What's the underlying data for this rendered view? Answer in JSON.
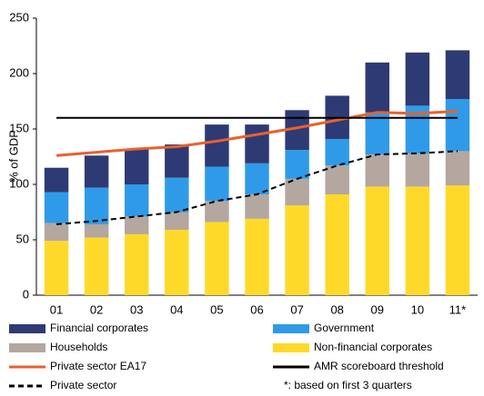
{
  "chart_data": {
    "type": "bar",
    "y_label": "% of GDP",
    "categories": [
      "01",
      "02",
      "03",
      "04",
      "05",
      "06",
      "07",
      "08",
      "09",
      "10",
      "11*"
    ],
    "ylim": [
      0,
      250
    ],
    "yticks": [
      0,
      50,
      100,
      150,
      200,
      250
    ],
    "series": [
      {
        "name": "Financial corporates",
        "kind": "bar",
        "color": "#2e3a73",
        "values": [
          22,
          29,
          32,
          30,
          38,
          35,
          36,
          39,
          45,
          48,
          44
        ]
      },
      {
        "name": "Government",
        "kind": "bar",
        "color": "#2f9be8",
        "values": [
          28,
          33,
          29,
          31,
          31,
          28,
          26,
          24,
          38,
          43,
          47
        ]
      },
      {
        "name": "Households",
        "kind": "bar",
        "color": "#b3a79f",
        "values": [
          16,
          12,
          16,
          16,
          19,
          22,
          24,
          26,
          29,
          30,
          31
        ]
      },
      {
        "name": "Non-financial corporates",
        "kind": "bar",
        "color": "#ffd92a",
        "values": [
          49,
          52,
          55,
          59,
          66,
          69,
          81,
          91,
          98,
          98,
          99
        ]
      },
      {
        "name": "Private sector EA17",
        "kind": "line",
        "color": "#e8612c",
        "style": "solid",
        "values": [
          126,
          129,
          132,
          134,
          139,
          145,
          151,
          158,
          165,
          164,
          166
        ]
      },
      {
        "name": "AMR scoreboard threshold",
        "kind": "line",
        "color": "#000000",
        "style": "solid",
        "values": [
          160,
          160,
          160,
          160,
          160,
          160,
          160,
          160,
          160,
          160,
          160
        ]
      },
      {
        "name": "Private sector",
        "kind": "line",
        "color": "#000000",
        "style": "dashed",
        "values": [
          64,
          67,
          71,
          75,
          85,
          91,
          105,
          117,
          127,
          128,
          130
        ]
      }
    ],
    "note": "*: based on first 3 quarters"
  }
}
